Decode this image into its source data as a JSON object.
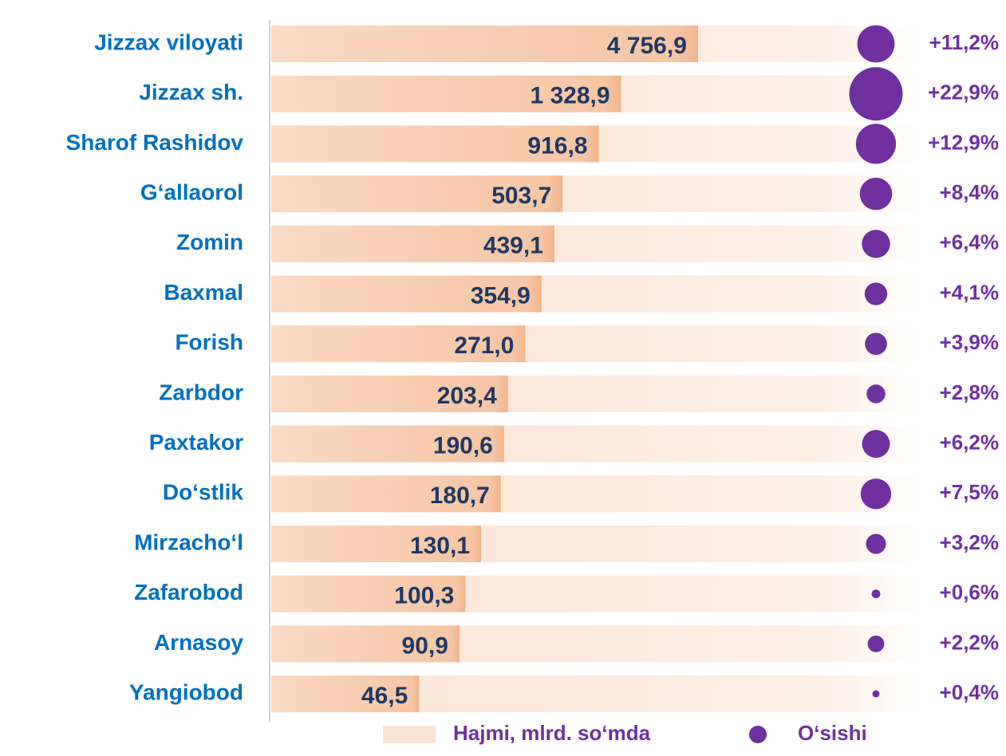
{
  "chart_data": {
    "type": "bar",
    "orientation": "horizontal",
    "log_scale": true,
    "xlim": [
      4,
      10000
    ],
    "categories": [
      "Jizzax viloyati",
      "Jizzax sh.",
      "Sharof Rashidov",
      "G‘allaorol",
      "Zomin",
      "Baxmal",
      "Forish",
      "Zarbdor",
      "Paxtakor",
      "Do‘stlik",
      "Mirzacho‘l",
      "Zafarobod",
      "Arnasoy",
      "Yangiobod"
    ],
    "series": [
      {
        "name": "Hajmi, mlrd. so‘mda",
        "type": "bar",
        "color": "#f4b183",
        "values": [
          4756.9,
          1328.9,
          916.8,
          503.7,
          439.1,
          354.9,
          271.0,
          203.4,
          190.6,
          180.7,
          130.1,
          100.3,
          90.9,
          46.5
        ],
        "value_labels": [
          "4 756,9",
          "1 328,9",
          "916,8",
          "503,7",
          "439,1",
          "354,9",
          "271,0",
          "203,4",
          "190,6",
          "180,7",
          "130,1",
          "100,3",
          "90,9",
          "46,5"
        ]
      },
      {
        "name": "O‘sishi",
        "type": "bubble",
        "color": "#7030a0",
        "values": [
          11.2,
          22.9,
          12.9,
          8.4,
          6.4,
          4.1,
          3.9,
          2.8,
          6.2,
          7.5,
          3.2,
          0.6,
          2.2,
          0.4
        ],
        "value_labels": [
          "+11,2%",
          "+22,9%",
          "+12,9%",
          "+8,4%",
          "+6,4%",
          "+4,1%",
          "+3,9%",
          "+2,8%",
          "+6,2%",
          "+7,5%",
          "+3,2%",
          "+0,6%",
          "+2,2%",
          "+0,4%"
        ]
      }
    ]
  }
}
